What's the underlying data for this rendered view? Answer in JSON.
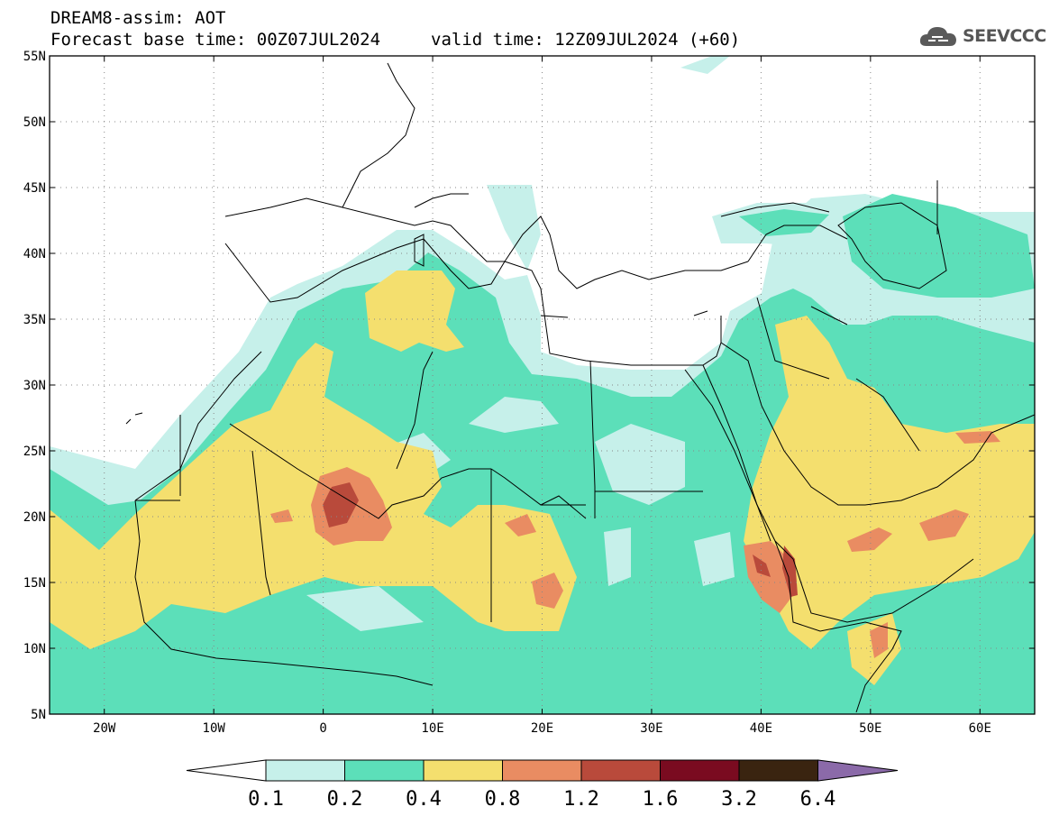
{
  "header": {
    "title_line1": "DREAM8-assim: AOT",
    "title_line2": "Forecast base time: 00Z07JUL2024",
    "valid_time": "valid time: 12Z09JUL2024 (+60)",
    "logo_text": "SEEVCCC"
  },
  "map": {
    "lon_range": [
      -25,
      65
    ],
    "lat_range": [
      5,
      55
    ],
    "lat_labels": [
      "55N",
      "50N",
      "45N",
      "40N",
      "35N",
      "30N",
      "25N",
      "20N",
      "15N",
      "10N",
      "5N"
    ],
    "lon_labels": [
      "20W",
      "10W",
      "0",
      "10E",
      "20E",
      "30E",
      "40E",
      "50E",
      "60E"
    ],
    "gridlines": "dotted"
  },
  "colorbar": {
    "labels": [
      "0.1",
      "0.2",
      "0.4",
      "0.8",
      "1.2",
      "1.6",
      "3.2",
      "6.4"
    ],
    "colors": [
      "#c6f0ea",
      "#5cdfb9",
      "#f4df6e",
      "#e98c62",
      "#b94a3b",
      "#7a0b20",
      "#3a2410",
      "#8b6aa9"
    ]
  }
}
